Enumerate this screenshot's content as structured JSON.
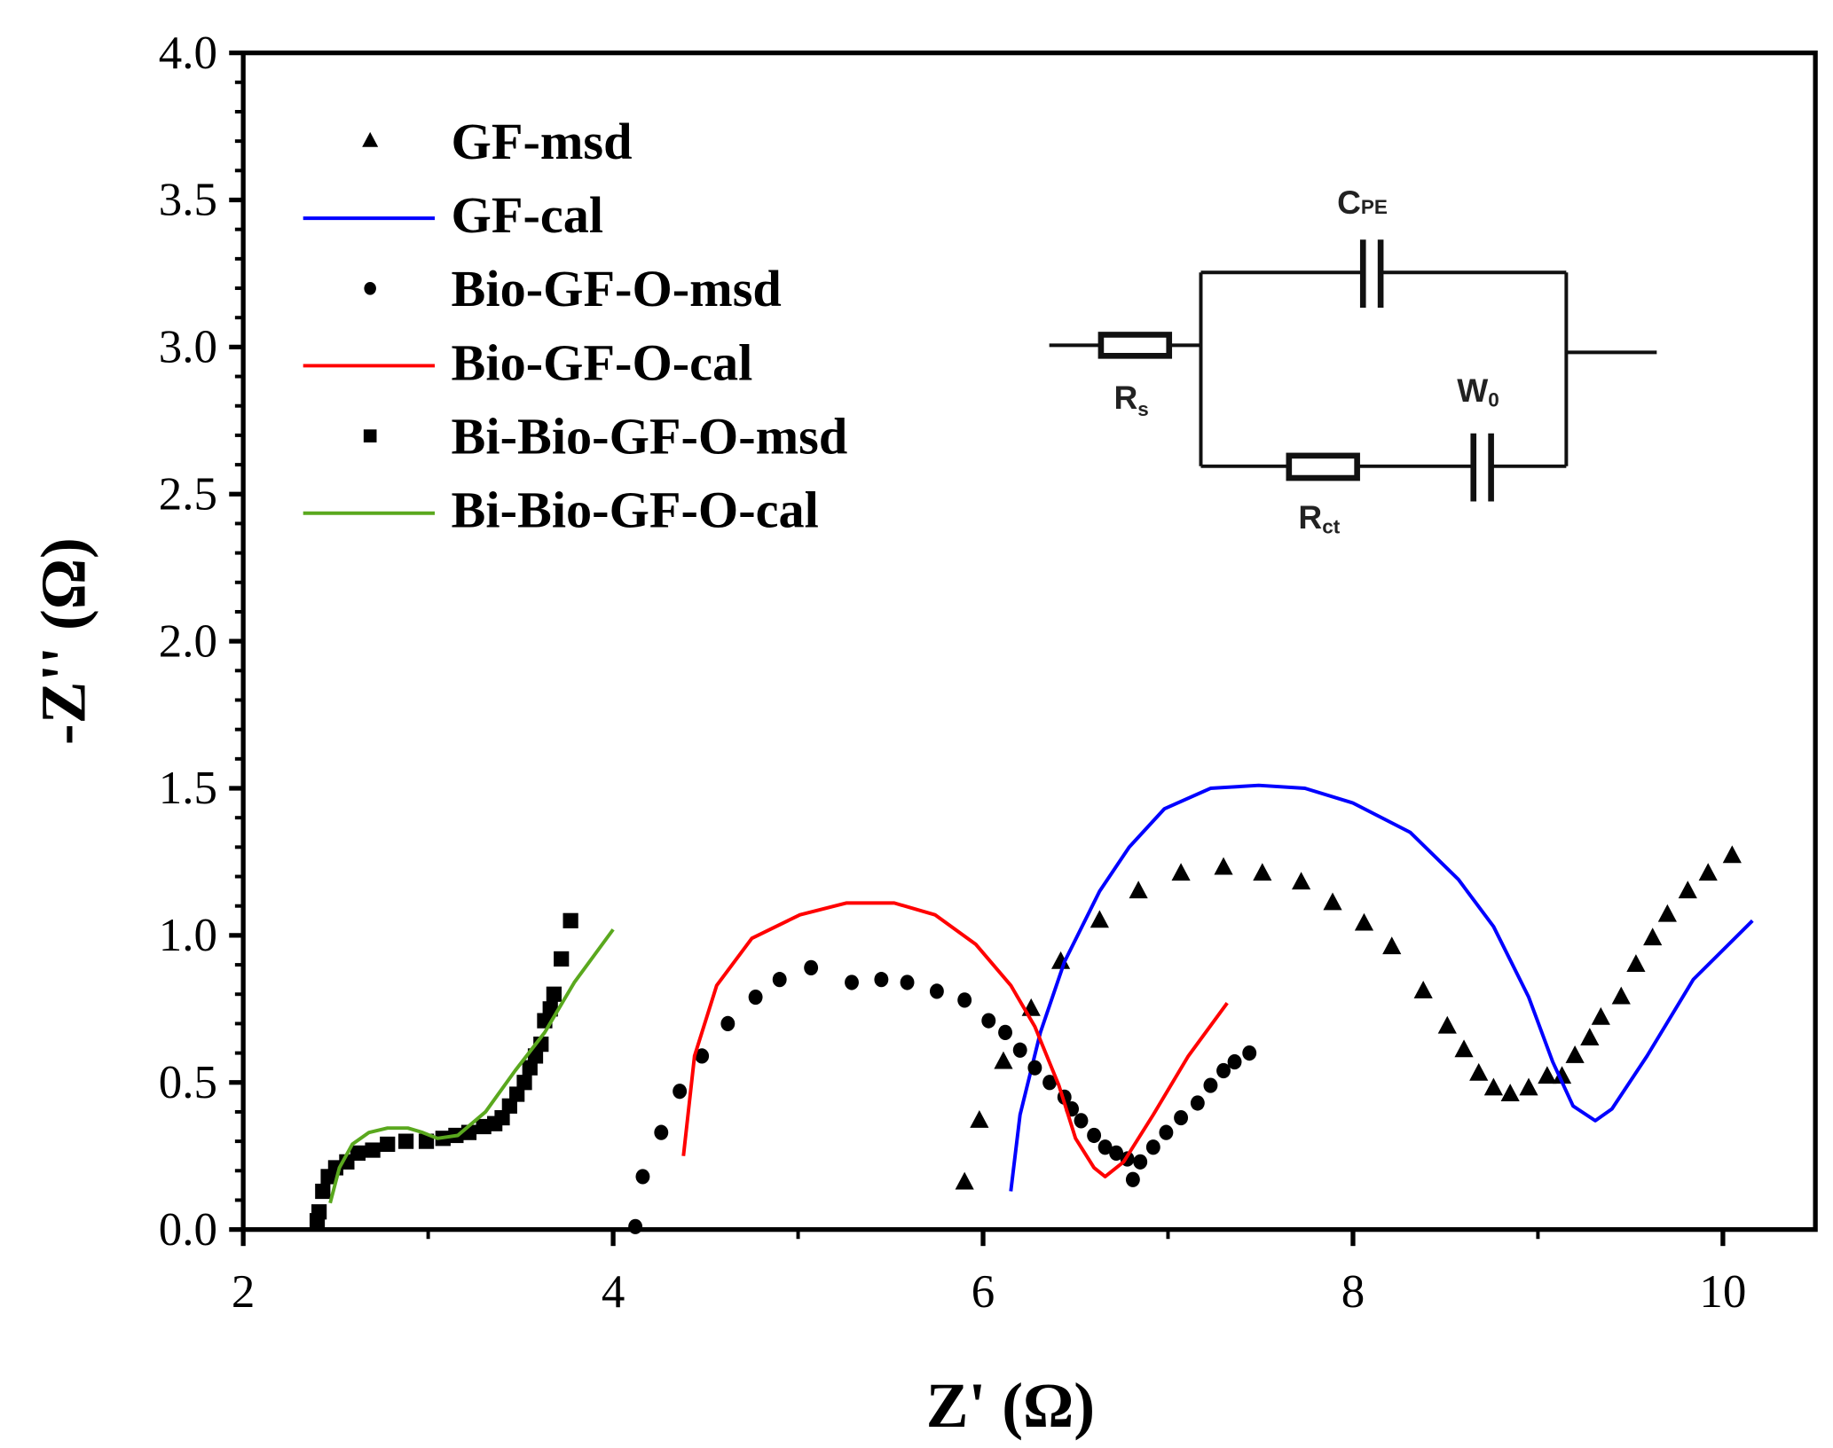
{
  "chart_data": {
    "type": "scatter",
    "title": "",
    "xlabel": "Z' (Ω)",
    "ylabel": "-Z'' (Ω)",
    "xlim": [
      2,
      10.5
    ],
    "ylim": [
      0,
      4.0
    ],
    "xticks": [
      "2",
      "4",
      "6",
      "8",
      "10"
    ],
    "xtick_values": [
      2,
      4,
      6,
      8,
      10
    ],
    "yticks": [
      "0.0",
      "0.5",
      "1.0",
      "1.5",
      "2.0",
      "2.5",
      "3.0",
      "3.5",
      "4.0"
    ],
    "ytick_values": [
      0,
      0.5,
      1.0,
      1.5,
      2.0,
      2.5,
      3.0,
      3.5,
      4.0
    ],
    "grid": false,
    "legend_position": "top-left",
    "series": [
      {
        "name": "GF-msd",
        "kind": "marker",
        "marker": "triangle",
        "color": "#000000",
        "x": [
          5.9,
          5.98,
          6.11,
          6.26,
          6.42,
          6.63,
          6.84,
          7.07,
          7.3,
          7.51,
          7.72,
          7.89,
          8.06,
          8.21,
          8.38,
          8.51,
          8.6,
          8.68,
          8.76,
          8.85,
          8.95,
          9.05,
          9.13,
          9.2,
          9.28,
          9.34,
          9.45,
          9.53,
          9.62,
          9.7,
          9.81,
          9.92,
          10.05
        ],
        "y": [
          0.16,
          0.37,
          0.57,
          0.75,
          0.91,
          1.05,
          1.15,
          1.21,
          1.23,
          1.21,
          1.18,
          1.11,
          1.04,
          0.96,
          0.81,
          0.69,
          0.61,
          0.53,
          0.48,
          0.46,
          0.48,
          0.52,
          0.52,
          0.59,
          0.65,
          0.72,
          0.79,
          0.9,
          0.99,
          1.07,
          1.15,
          1.21,
          1.27
        ]
      },
      {
        "name": "GF-cal",
        "kind": "line",
        "color": "#0000ff",
        "x": [
          6.15,
          6.2,
          6.31,
          6.44,
          6.63,
          6.79,
          6.98,
          7.23,
          7.49,
          7.74,
          8.0,
          8.31,
          8.57,
          8.76,
          8.95,
          9.08,
          9.19,
          9.31,
          9.4,
          9.59,
          9.84,
          10.16
        ],
        "y": [
          0.13,
          0.39,
          0.67,
          0.91,
          1.15,
          1.3,
          1.43,
          1.5,
          1.51,
          1.5,
          1.45,
          1.35,
          1.19,
          1.03,
          0.79,
          0.57,
          0.42,
          0.37,
          0.41,
          0.59,
          0.85,
          1.05
        ]
      },
      {
        "name": "Bio-GF-O-msd",
        "kind": "marker",
        "marker": "circle",
        "color": "#000000",
        "x": [
          4.12,
          4.16,
          4.26,
          4.36,
          4.48,
          4.62,
          4.77,
          4.9,
          5.07,
          5.29,
          5.45,
          5.59,
          5.75,
          5.9,
          6.03,
          6.12,
          6.2,
          6.28,
          6.36,
          6.44,
          6.48,
          6.53,
          6.6,
          6.66,
          6.72,
          6.78,
          6.81,
          6.85,
          6.92,
          6.99,
          7.07,
          7.16,
          7.23,
          7.3,
          7.36,
          7.44
        ],
        "y": [
          0.01,
          0.18,
          0.33,
          0.47,
          0.59,
          0.7,
          0.79,
          0.85,
          0.89,
          0.84,
          0.85,
          0.84,
          0.81,
          0.78,
          0.71,
          0.67,
          0.61,
          0.55,
          0.5,
          0.45,
          0.41,
          0.37,
          0.32,
          0.28,
          0.26,
          0.24,
          0.17,
          0.23,
          0.28,
          0.33,
          0.38,
          0.43,
          0.49,
          0.54,
          0.57,
          0.6
        ]
      },
      {
        "name": "Bio-GF-O-cal",
        "kind": "line",
        "color": "#ff0000",
        "x": [
          4.38,
          4.44,
          4.56,
          4.75,
          5.01,
          5.26,
          5.52,
          5.74,
          5.96,
          6.15,
          6.28,
          6.41,
          6.5,
          6.6,
          6.66,
          6.76,
          6.92,
          7.11,
          7.32
        ],
        "y": [
          0.25,
          0.59,
          0.83,
          0.99,
          1.07,
          1.11,
          1.11,
          1.07,
          0.97,
          0.83,
          0.69,
          0.49,
          0.31,
          0.21,
          0.18,
          0.23,
          0.39,
          0.59,
          0.77
        ]
      },
      {
        "name": "Bi-Bio-GF-O-msd",
        "kind": "marker",
        "marker": "square",
        "color": "#000000",
        "x": [
          2.4,
          2.41,
          2.43,
          2.46,
          2.5,
          2.56,
          2.62,
          2.7,
          2.78,
          2.88,
          2.99,
          3.08,
          3.15,
          3.22,
          3.3,
          3.36,
          3.4,
          3.44,
          3.48,
          3.52,
          3.55,
          3.58,
          3.61,
          3.63,
          3.66,
          3.68,
          3.72,
          3.77
        ],
        "y": [
          0.03,
          0.06,
          0.13,
          0.18,
          0.21,
          0.23,
          0.26,
          0.27,
          0.29,
          0.3,
          0.3,
          0.31,
          0.32,
          0.33,
          0.35,
          0.36,
          0.38,
          0.42,
          0.46,
          0.5,
          0.55,
          0.59,
          0.63,
          0.71,
          0.75,
          0.8,
          0.92,
          1.05
        ]
      },
      {
        "name": "Bi-Bio-GF-O-cal",
        "kind": "line",
        "color": "#5aa81e",
        "x": [
          2.47,
          2.52,
          2.59,
          2.68,
          2.78,
          2.89,
          2.97,
          3.05,
          3.16,
          3.31,
          3.47,
          3.63,
          3.79,
          4.0
        ],
        "y": [
          0.09,
          0.21,
          0.29,
          0.33,
          0.345,
          0.345,
          0.33,
          0.31,
          0.32,
          0.4,
          0.54,
          0.67,
          0.84,
          1.02
        ]
      }
    ],
    "inset_circuit": {
      "labels": {
        "rs": "R",
        "rs_sub": "s",
        "cpe": "C",
        "cpe_sub": "PE",
        "w0": "W",
        "w0_sub": "0",
        "rct": "R",
        "rct_sub": "ct"
      }
    }
  }
}
